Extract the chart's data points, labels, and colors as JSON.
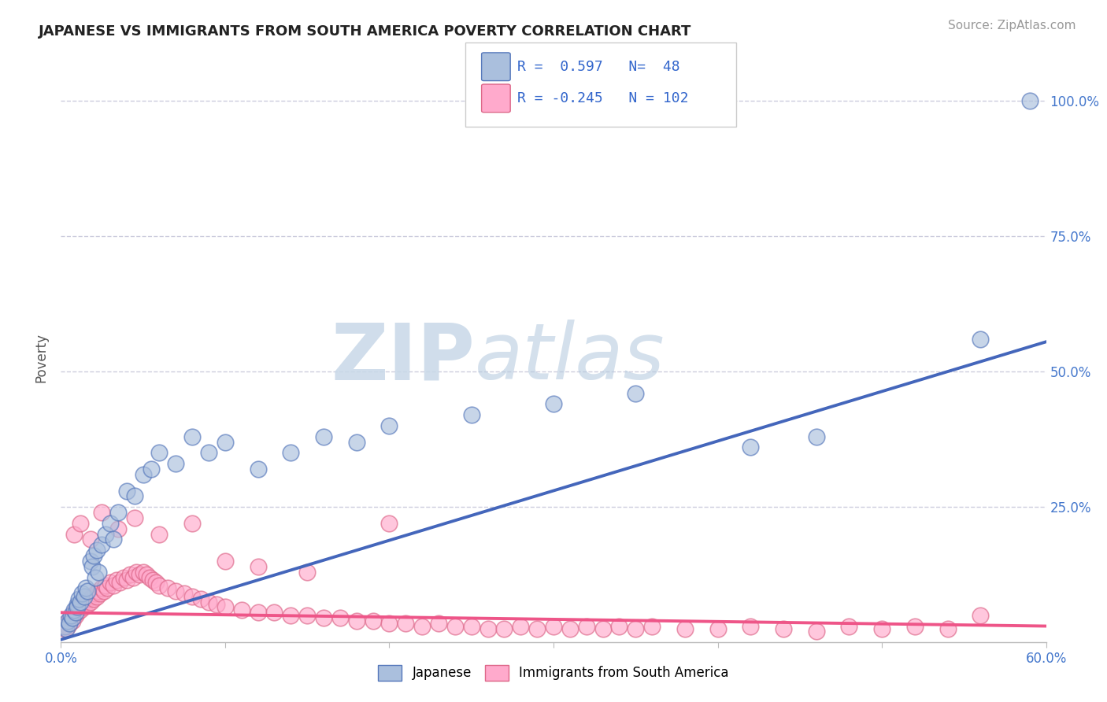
{
  "title": "JAPANESE VS IMMIGRANTS FROM SOUTH AMERICA POVERTY CORRELATION CHART",
  "source": "Source: ZipAtlas.com",
  "ylabel": "Poverty",
  "xlim": [
    0.0,
    0.6
  ],
  "ylim": [
    0.0,
    1.05
  ],
  "xtick_positions": [
    0.0,
    0.1,
    0.2,
    0.3,
    0.4,
    0.5,
    0.6
  ],
  "xticklabels": [
    "0.0%",
    "",
    "",
    "",
    "",
    "",
    "60.0%"
  ],
  "ytick_positions": [
    0.0,
    0.25,
    0.5,
    0.75,
    1.0
  ],
  "yticklabels_right": [
    "",
    "25.0%",
    "50.0%",
    "75.0%",
    "100.0%"
  ],
  "blue_fill": "#AABFDD",
  "blue_edge": "#5577BB",
  "pink_fill": "#FFAACC",
  "pink_edge": "#DD6688",
  "blue_line": "#4466BB",
  "pink_line": "#EE5588",
  "grid_color": "#CCCCDD",
  "background": "#FFFFFF",
  "watermark_zip": "ZIP",
  "watermark_atlas": "atlas",
  "title_fontsize": 13,
  "source_fontsize": 11,
  "tick_fontsize": 12,
  "legend_r1": "R =  0.597",
  "legend_n1": "N=  48",
  "legend_r2": "R = -0.245",
  "legend_n2": "N = 102",
  "jp_x": [
    0.002,
    0.003,
    0.004,
    0.005,
    0.006,
    0.007,
    0.008,
    0.009,
    0.01,
    0.01,
    0.011,
    0.012,
    0.013,
    0.014,
    0.015,
    0.016,
    0.018,
    0.019,
    0.02,
    0.021,
    0.022,
    0.023,
    0.025,
    0.027,
    0.03,
    0.032,
    0.035,
    0.04,
    0.045,
    0.05,
    0.055,
    0.06,
    0.07,
    0.08,
    0.09,
    0.1,
    0.12,
    0.14,
    0.16,
    0.18,
    0.2,
    0.25,
    0.3,
    0.35,
    0.42,
    0.46,
    0.56,
    0.59
  ],
  "jp_y": [
    0.03,
    0.025,
    0.04,
    0.035,
    0.05,
    0.045,
    0.06,
    0.055,
    0.07,
    0.065,
    0.08,
    0.075,
    0.09,
    0.085,
    0.1,
    0.095,
    0.15,
    0.14,
    0.16,
    0.12,
    0.17,
    0.13,
    0.18,
    0.2,
    0.22,
    0.19,
    0.24,
    0.28,
    0.27,
    0.31,
    0.32,
    0.35,
    0.33,
    0.38,
    0.35,
    0.37,
    0.32,
    0.35,
    0.38,
    0.37,
    0.4,
    0.42,
    0.44,
    0.46,
    0.36,
    0.38,
    0.56,
    1.0
  ],
  "sa_x": [
    0.001,
    0.002,
    0.003,
    0.004,
    0.005,
    0.005,
    0.006,
    0.007,
    0.008,
    0.009,
    0.01,
    0.01,
    0.011,
    0.012,
    0.013,
    0.014,
    0.015,
    0.016,
    0.017,
    0.018,
    0.019,
    0.02,
    0.021,
    0.022,
    0.023,
    0.024,
    0.025,
    0.026,
    0.027,
    0.028,
    0.03,
    0.032,
    0.034,
    0.036,
    0.038,
    0.04,
    0.042,
    0.044,
    0.046,
    0.048,
    0.05,
    0.052,
    0.054,
    0.056,
    0.058,
    0.06,
    0.065,
    0.07,
    0.075,
    0.08,
    0.085,
    0.09,
    0.095,
    0.1,
    0.11,
    0.12,
    0.13,
    0.14,
    0.15,
    0.16,
    0.17,
    0.18,
    0.19,
    0.2,
    0.21,
    0.22,
    0.23,
    0.24,
    0.25,
    0.26,
    0.27,
    0.28,
    0.29,
    0.3,
    0.31,
    0.32,
    0.33,
    0.34,
    0.35,
    0.36,
    0.38,
    0.4,
    0.42,
    0.44,
    0.46,
    0.48,
    0.5,
    0.52,
    0.54,
    0.56,
    0.008,
    0.012,
    0.018,
    0.025,
    0.035,
    0.045,
    0.06,
    0.08,
    0.1,
    0.12,
    0.15,
    0.2
  ],
  "sa_y": [
    0.03,
    0.025,
    0.035,
    0.03,
    0.04,
    0.035,
    0.045,
    0.04,
    0.055,
    0.05,
    0.06,
    0.055,
    0.065,
    0.06,
    0.07,
    0.065,
    0.075,
    0.07,
    0.08,
    0.075,
    0.085,
    0.08,
    0.09,
    0.085,
    0.095,
    0.09,
    0.1,
    0.095,
    0.105,
    0.1,
    0.11,
    0.105,
    0.115,
    0.11,
    0.12,
    0.115,
    0.125,
    0.12,
    0.13,
    0.125,
    0.13,
    0.125,
    0.12,
    0.115,
    0.11,
    0.105,
    0.1,
    0.095,
    0.09,
    0.085,
    0.08,
    0.075,
    0.07,
    0.065,
    0.06,
    0.055,
    0.055,
    0.05,
    0.05,
    0.045,
    0.045,
    0.04,
    0.04,
    0.035,
    0.035,
    0.03,
    0.035,
    0.03,
    0.03,
    0.025,
    0.025,
    0.03,
    0.025,
    0.03,
    0.025,
    0.03,
    0.025,
    0.03,
    0.025,
    0.03,
    0.025,
    0.025,
    0.03,
    0.025,
    0.02,
    0.03,
    0.025,
    0.03,
    0.025,
    0.05,
    0.2,
    0.22,
    0.19,
    0.24,
    0.21,
    0.23,
    0.2,
    0.22,
    0.15,
    0.14,
    0.13,
    0.22
  ]
}
